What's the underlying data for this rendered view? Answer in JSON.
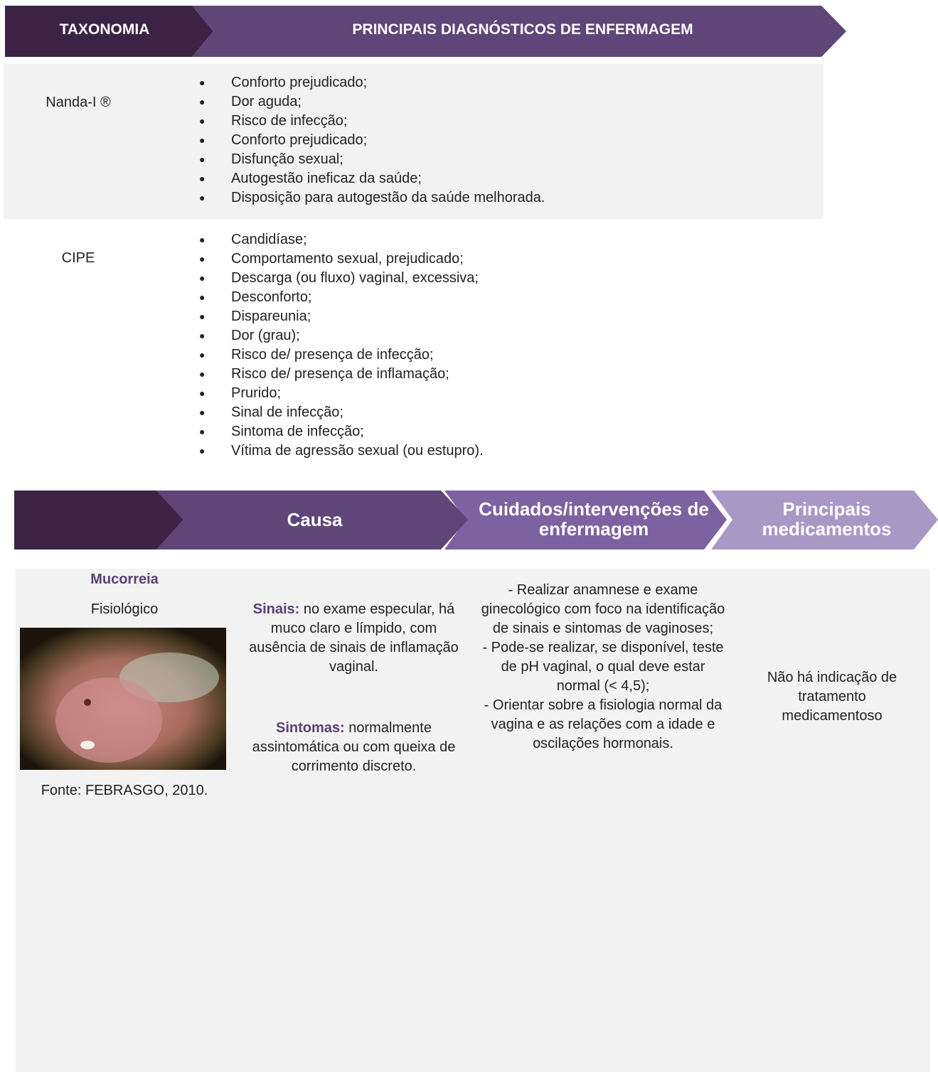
{
  "header": {
    "taxonomy": "TAXONOMIA",
    "diagnoses": "PRINCIPAIS DIAGNÓSTICOS DE ENFERMAGEM"
  },
  "taxonomies": [
    {
      "label": "Nanda-I ®",
      "items": [
        "Conforto prejudicado;",
        "Dor aguda;",
        "Risco de infecção;",
        "Conforto prejudicado;",
        "Disfunção sexual;",
        "Autogestão ineficaz da saúde;",
        "Disposição para autogestão da saúde melhorada."
      ]
    },
    {
      "label": "CIPE",
      "items": [
        "Candidíase;",
        "Comportamento sexual, prejudicado;",
        "Descarga (ou fluxo) vaginal, excessiva;",
        "Desconforto;",
        "Dispareunia;",
        "Dor (grau);",
        "Risco de/ presença de infecção;",
        "Risco de/ presença de inflamação;",
        "Prurido;",
        "Sinal de infecção;",
        "Sintoma de infecção;",
        "Vítima de agressão sexual (ou estupro)."
      ]
    }
  ],
  "table": {
    "headers": [
      "Causa",
      "Cuidados/intervenções de enfermagem",
      "Principais medicamentos"
    ],
    "row": {
      "name": "Mucorreia",
      "type": "Fisiológico",
      "source": "Fonte: FEBRASGO, 2010.",
      "signs_label": "Sinais:",
      "signs": "no exame especular, há muco claro e límpido, com ausência de sinais de inflamação vaginal.",
      "symptoms_label": "Sintomas:",
      "symptoms": "normalmente assintomática ou com queixa de corrimento discreto.",
      "care": [
        "- Realizar anamnese e exame ginecológico com foco na identificação de sinais e sintomas de vaginoses;",
        "- Pode-se realizar, se disponível, teste de pH vaginal, o qual deve estar normal (< 4,5);",
        "- Orientar sobre a fisiologia normal da vagina e as relações com a idade e oscilações hormonais."
      ],
      "medication": "Não há indicação de tratamento medicamentoso"
    }
  }
}
